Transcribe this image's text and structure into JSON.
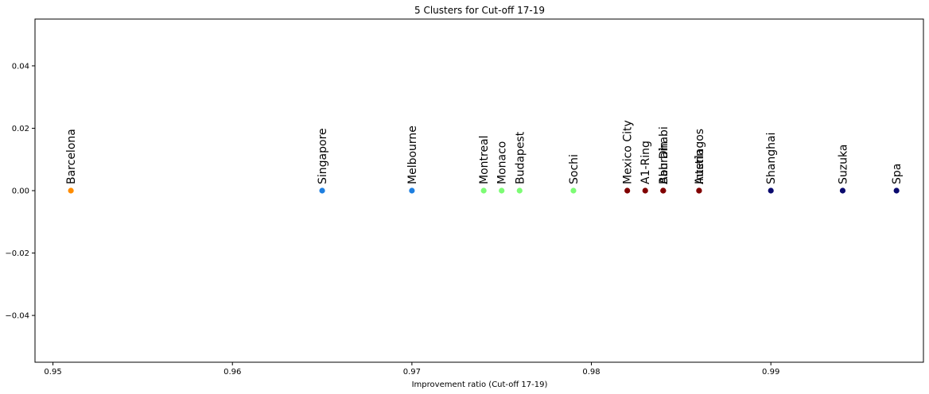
{
  "chart_data": {
    "type": "scatter",
    "title": "5 Clusters for Cut-off 17-19",
    "xlabel": "Improvement ratio (Cut-off 17-19)",
    "ylabel": "",
    "xlim": [
      0.949,
      0.9985
    ],
    "ylim": [
      -0.055,
      0.055
    ],
    "xticks": [
      0.95,
      0.96,
      0.97,
      0.98,
      0.99
    ],
    "xtick_labels": [
      "0.95",
      "0.96",
      "0.97",
      "0.98",
      "0.99"
    ],
    "yticks": [
      -0.04,
      -0.02,
      0.0,
      0.02,
      0.04
    ],
    "ytick_labels": [
      "−0.04",
      "−0.02",
      "0.00",
      "0.02",
      "0.04"
    ],
    "grid": false,
    "points": [
      {
        "label": "Barcelona",
        "x": 0.951,
        "y": 0,
        "color": "#ff8c00"
      },
      {
        "label": "Singapore",
        "x": 0.965,
        "y": 0,
        "color": "#1e7fe0"
      },
      {
        "label": "Melbourne",
        "x": 0.97,
        "y": 0,
        "color": "#1e7fe0"
      },
      {
        "label": "Montreal",
        "x": 0.974,
        "y": 0,
        "color": "#7cfc74"
      },
      {
        "label": "Monaco",
        "x": 0.975,
        "y": 0,
        "color": "#7cfc74"
      },
      {
        "label": "Budapest",
        "x": 0.976,
        "y": 0,
        "color": "#7cfc74"
      },
      {
        "label": "Sochi",
        "x": 0.979,
        "y": 0,
        "color": "#7cfc74"
      },
      {
        "label": "Mexico City",
        "x": 0.982,
        "y": 0,
        "color": "#800000"
      },
      {
        "label": "A1-Ring",
        "x": 0.983,
        "y": 0,
        "color": "#800000"
      },
      {
        "label": "Abu Dhabi",
        "x": 0.984,
        "y": 0,
        "color": "#800000"
      },
      {
        "label": "Bahrain",
        "x": 0.984,
        "y": 0,
        "color": "#800000"
      },
      {
        "label": "Austin",
        "x": 0.986,
        "y": 0,
        "color": "#800000"
      },
      {
        "label": "Interlagos",
        "x": 0.986,
        "y": 0,
        "color": "#800000"
      },
      {
        "label": "Shanghai",
        "x": 0.99,
        "y": 0,
        "color": "#0a0a6e"
      },
      {
        "label": "Suzuka",
        "x": 0.994,
        "y": 0,
        "color": "#0a0a6e"
      },
      {
        "label": "Spa",
        "x": 0.997,
        "y": 0,
        "color": "#0a0a6e"
      }
    ]
  }
}
